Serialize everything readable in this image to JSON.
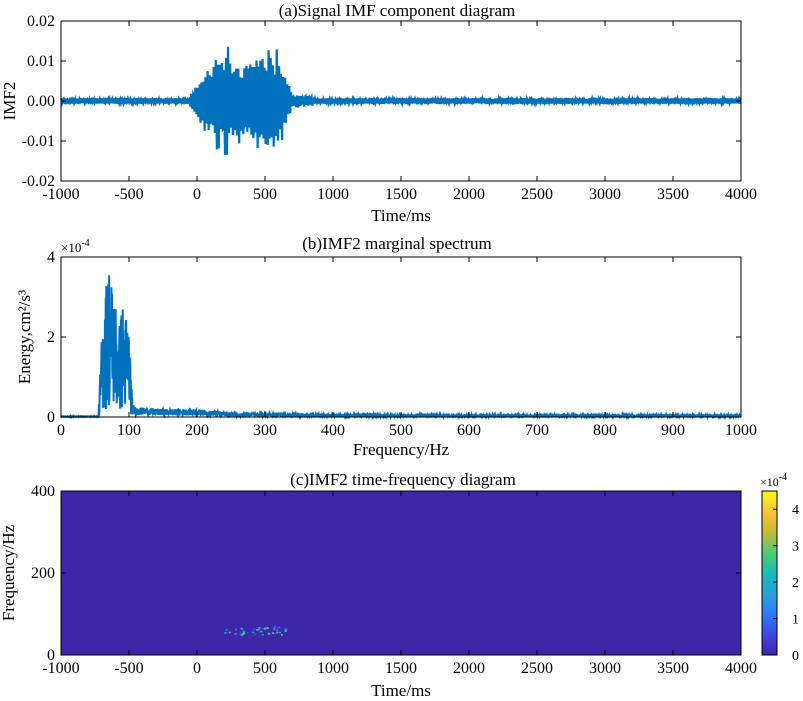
{
  "chart_data": [
    {
      "type": "line",
      "title": "(a)Signal IMF component diagram",
      "xlabel": "Time/ms",
      "ylabel": "IMF2",
      "xlim": [
        -1000,
        4000
      ],
      "ylim": [
        -0.02,
        0.02
      ],
      "xticks": [
        "-1000",
        "-500",
        "0",
        "500",
        "1000",
        "1500",
        "2000",
        "2500",
        "3000",
        "3500",
        "4000"
      ],
      "yticks": [
        "-0.02",
        "-0.01",
        "0.00",
        "0.01",
        "0.02"
      ],
      "color": "#0072BD",
      "grid": false,
      "series": [
        {
          "values": {
            "noise_amplitude_outside_burst": 0.0008,
            "burst_start": -50,
            "burst_end": 700,
            "envelope": [
              {
                "x": -50,
                "y": 0.002
              },
              {
                "x": 50,
                "y": 0.009
              },
              {
                "x": 150,
                "y": 0.014
              },
              {
                "x": 250,
                "y": 0.016
              },
              {
                "x": 300,
                "y": 0.012
              },
              {
                "x": 400,
                "y": 0.013
              },
              {
                "x": 500,
                "y": 0.016
              },
              {
                "x": 600,
                "y": 0.016
              },
              {
                "x": 700,
                "y": 0.002
              },
              {
                "x": 850,
                "y": 0.0015
              }
            ]
          }
        }
      ]
    },
    {
      "type": "line",
      "title": "(b)IMF2 marginal spectrum",
      "xlabel": "Frequency/Hz",
      "ylabel": "Energy,cm²/s³",
      "exponent_label": "×10",
      "exponent_value": "-4",
      "xlim": [
        0,
        1000
      ],
      "ylim": [
        0,
        4
      ],
      "xticks": [
        "0",
        "100",
        "200",
        "300",
        "400",
        "500",
        "600",
        "700",
        "800",
        "900",
        "1000"
      ],
      "yticks": [
        "0",
        "2",
        "4"
      ],
      "color": "#0072BD",
      "grid": false,
      "series": [
        {
          "values": {
            "peaks": [
              {
                "x": 55,
                "y": 0.0
              },
              {
                "x": 60,
                "y": 2.1
              },
              {
                "x": 65,
                "y": 3.2
              },
              {
                "x": 70,
                "y": 4.0
              },
              {
                "x": 75,
                "y": 3.4
              },
              {
                "x": 80,
                "y": 3.0
              },
              {
                "x": 85,
                "y": 2.2
              },
              {
                "x": 90,
                "y": 2.9
              },
              {
                "x": 95,
                "y": 2.6
              },
              {
                "x": 100,
                "y": 2.4
              },
              {
                "x": 105,
                "y": 0.3
              },
              {
                "x": 110,
                "y": 0.25
              },
              {
                "x": 150,
                "y": 0.2
              },
              {
                "x": 200,
                "y": 0.2
              },
              {
                "x": 250,
                "y": 0.1
              },
              {
                "x": 400,
                "y": 0.07
              },
              {
                "x": 1000,
                "y": 0.05
              }
            ]
          }
        }
      ]
    },
    {
      "type": "heatmap",
      "title": "(c)IMF2 time-frequency diagram",
      "xlabel": "Time/ms",
      "ylabel": "Frequency/Hz",
      "xlim": [
        -1000,
        4000
      ],
      "ylim": [
        0,
        400
      ],
      "xticks": [
        "-1000",
        "-500",
        "0",
        "500",
        "1000",
        "1500",
        "2000",
        "2500",
        "3000",
        "3500",
        "4000"
      ],
      "yticks": [
        "0",
        "200",
        "400"
      ],
      "background_color": "#3E26A8",
      "colorbar": {
        "exponent_label": "×10",
        "exponent_value": "-4",
        "ticks": [
          "0",
          "1",
          "2",
          "3",
          "4"
        ],
        "range": [
          0,
          4.5
        ],
        "colors": [
          "#3E26A8",
          "#3F47E6",
          "#2F7AFE",
          "#2AA1D9",
          "#12BEB9",
          "#54CB70",
          "#C5BC37",
          "#FCC337",
          "#F9FB0E"
        ]
      },
      "hotspot": {
        "x_range": [
          200,
          650
        ],
        "y_range": [
          50,
          70
        ],
        "peak": 3.0
      }
    }
  ]
}
